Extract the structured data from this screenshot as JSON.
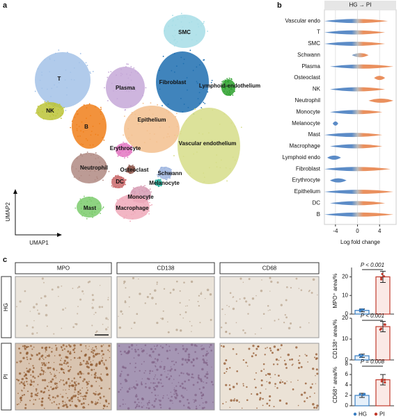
{
  "panel_labels": [
    "a",
    "b",
    "c"
  ],
  "chart_data": [
    {
      "type": "umap",
      "x_label": "UMAP1",
      "y_label": "UMAP2",
      "clusters": [
        {
          "name": "SMC",
          "color": "#a6dde6"
        },
        {
          "name": "Fibroblast",
          "color": "#1f6fb0"
        },
        {
          "name": "Lymphoid-endothelium",
          "color": "#2ca02c"
        },
        {
          "name": "T",
          "color": "#a3c2e8"
        },
        {
          "name": "NK",
          "color": "#bcc437"
        },
        {
          "name": "Plasma",
          "color": "#c5a8d8"
        },
        {
          "name": "B",
          "color": "#f07f1a"
        },
        {
          "name": "Epithelium",
          "color": "#f3c08e"
        },
        {
          "name": "Vascular endothelium",
          "color": "#d6dd88"
        },
        {
          "name": "Erythrocyte",
          "color": "#e377c2"
        },
        {
          "name": "Neutrophil",
          "color": "#b08a82"
        },
        {
          "name": "Osteoclast",
          "color": "#8c564b"
        },
        {
          "name": "Schwann",
          "color": "#9fb6e0"
        },
        {
          "name": "DC",
          "color": "#c9686a"
        },
        {
          "name": "Melanocyte",
          "color": "#2bb3a0"
        },
        {
          "name": "Monocyte",
          "color": "#d79cb4"
        },
        {
          "name": "Mast",
          "color": "#7bcb6c"
        },
        {
          "name": "Macrophage",
          "color": "#f0a9ba"
        }
      ]
    },
    {
      "type": "beeswarm",
      "title": "HG → PI",
      "categories": [
        "Vascular endo",
        "T",
        "SMC",
        "Schwann",
        "Plasma",
        "Osteoclast",
        "NK",
        "Neutrophil",
        "Monocyte",
        "Melanocyte",
        "Mast",
        "Macrophage",
        "Lymphoid endo",
        "Fibroblast",
        "Erythrocyte",
        "Epithelium",
        "DC",
        "B"
      ],
      "low": [
        -6,
        -6,
        -6,
        -1,
        -5,
        3,
        -5,
        2,
        -5,
        -4.5,
        -6,
        -5,
        -5.5,
        -6,
        -5,
        -6,
        -5,
        -6
      ],
      "high": [
        5.5,
        5,
        5,
        2,
        6.5,
        5,
        5,
        6.5,
        4.5,
        -3.5,
        4.5,
        4.5,
        -3,
        6,
        -2,
        6.5,
        5,
        6.5
      ],
      "colors": [
        "#4a7fc1",
        "#b5b5b5",
        "#e8844c"
      ],
      "xlim": [
        -6,
        7
      ],
      "xticks": [
        -4,
        0,
        4
      ],
      "x_label": "Log fold change"
    },
    {
      "type": "bar",
      "y_label": "MPO⁺ area/%",
      "categories": [
        "HG",
        "PI"
      ],
      "values": [
        2,
        20
      ],
      "errors": [
        0.8,
        3
      ],
      "ylim": [
        0,
        25
      ],
      "yticks": [
        0,
        10,
        20
      ],
      "annotation": "P < 0.001",
      "colors": [
        "#3a7ec2",
        "#c0392b"
      ]
    },
    {
      "type": "bar",
      "y_label": "CD138⁺ area/%",
      "categories": [
        "HG",
        "PI"
      ],
      "values": [
        2,
        16
      ],
      "errors": [
        0.8,
        2.5
      ],
      "ylim": [
        0,
        20
      ],
      "yticks": [
        0,
        10,
        20
      ],
      "annotation": "P < 0.001",
      "colors": [
        "#3a7ec2",
        "#c0392b"
      ]
    },
    {
      "type": "bar",
      "y_label": "CD68⁺ area/%",
      "categories": [
        "HG",
        "PI"
      ],
      "values": [
        2,
        5
      ],
      "errors": [
        0.4,
        1
      ],
      "ylim": [
        0,
        8
      ],
      "yticks": [
        0,
        2,
        4,
        6,
        8
      ],
      "annotation": "P = 0.008",
      "colors": [
        "#3a7ec2",
        "#c0392b"
      ]
    }
  ],
  "image_panel": {
    "columns": [
      "MPO",
      "CD138",
      "CD68"
    ],
    "rows": [
      "HG",
      "PI"
    ]
  },
  "legend": [
    "HG",
    "PI"
  ]
}
